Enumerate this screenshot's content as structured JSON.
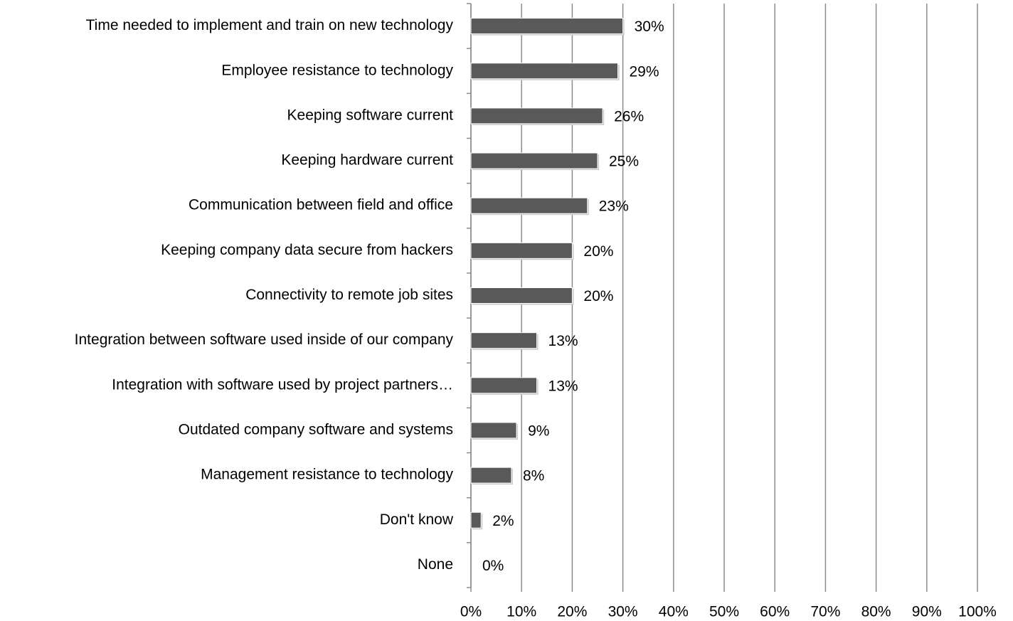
{
  "chart_data": {
    "type": "barh",
    "categories": [
      "Time needed to implement and train on new technology",
      "Employee resistance to technology",
      "Keeping software current",
      "Keeping hardware current",
      "Communication between field and office",
      "Keeping company data secure from hackers",
      "Connectivity to remote job sites",
      "Integration between software used inside of our company",
      "Integration with software used by project partners…",
      "Outdated company software and systems",
      "Management resistance to technology",
      "Don't know",
      "None"
    ],
    "values": [
      30,
      29,
      26,
      25,
      23,
      20,
      20,
      13,
      13,
      9,
      8,
      2,
      0
    ],
    "value_labels": [
      "30%",
      "29%",
      "26%",
      "25%",
      "23%",
      "20%",
      "20%",
      "13%",
      "13%",
      "9%",
      "8%",
      "2%",
      "0%"
    ],
    "color": "#595959",
    "xlim": [
      0,
      100
    ],
    "xticks": [
      {
        "value": 0,
        "label": "0%"
      },
      {
        "value": 10,
        "label": "10%"
      },
      {
        "value": 20,
        "label": "20%"
      },
      {
        "value": 30,
        "label": "30%"
      },
      {
        "value": 40,
        "label": "40%"
      },
      {
        "value": 50,
        "label": "50%"
      },
      {
        "value": 60,
        "label": "60%"
      },
      {
        "value": 70,
        "label": "70%"
      },
      {
        "value": 80,
        "label": "80%"
      },
      {
        "value": 90,
        "label": "90%"
      },
      {
        "value": 100,
        "label": "100%"
      }
    ],
    "grid": true
  }
}
